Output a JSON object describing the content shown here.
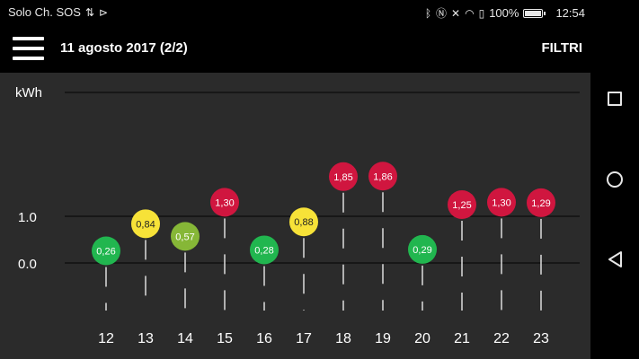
{
  "status_bar": {
    "carrier": "Solo Ch. SOS",
    "battery": "100%",
    "time": "12:54",
    "left_icons": [
      "sync-icon",
      "flash-icon"
    ],
    "right_icons": [
      "bluetooth-icon",
      "nfc-icon",
      "mute-icon",
      "wifi-icon",
      "battery-saver-icon"
    ]
  },
  "app_bar": {
    "title": "11 agosto 2017 (2/2)",
    "filter_label": "FILTRI"
  },
  "navigation": {
    "buttons": [
      "recents-button",
      "home-button",
      "back-button"
    ]
  },
  "colors": {
    "green": "#21b64f",
    "yellow": "#f7e238",
    "light_green": "#86b737",
    "red": "#d0163f",
    "chart_background": "#2b2b2b"
  },
  "chart_data": {
    "type": "scatter",
    "ylabel": "kWh",
    "y_ticks": [
      "1.0",
      "0.0"
    ],
    "categories": [
      "12",
      "13",
      "14",
      "15",
      "16",
      "17",
      "18",
      "19",
      "20",
      "21",
      "22",
      "23"
    ],
    "values": [
      0.26,
      0.84,
      0.57,
      1.3,
      0.28,
      0.88,
      1.85,
      1.86,
      0.29,
      1.25,
      1.3,
      1.29
    ],
    "labels": [
      "0,26",
      "0,84",
      "0,57",
      "1,30",
      "0,28",
      "0,88",
      "1,85",
      "1,86",
      "0,29",
      "1,25",
      "1,30",
      "1,29"
    ],
    "point_colors": [
      "green",
      "yellow",
      "light_green",
      "red",
      "green",
      "yellow",
      "red",
      "red",
      "green",
      "red",
      "red",
      "red"
    ],
    "grid": true
  }
}
